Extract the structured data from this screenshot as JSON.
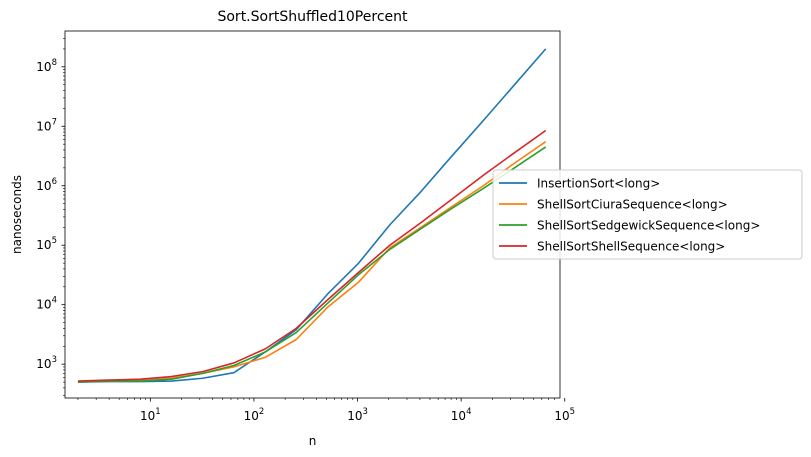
{
  "chart_data": {
    "type": "line",
    "title": "Sort.SortShuffled10Percent",
    "xlabel": "n",
    "ylabel": "nanoseconds",
    "xscale": "log",
    "yscale": "log",
    "xlim": [
      1.5,
      90000
    ],
    "ylim": [
      270,
      400000000
    ],
    "x_ticks": [
      {
        "value": 10,
        "base": "10",
        "exp": "1"
      },
      {
        "value": 100,
        "base": "10",
        "exp": "2"
      },
      {
        "value": 1000,
        "base": "10",
        "exp": "3"
      },
      {
        "value": 10000,
        "base": "10",
        "exp": "4"
      },
      {
        "value": 100000,
        "base": "10",
        "exp": "5"
      }
    ],
    "y_ticks": [
      {
        "value": 1000,
        "base": "10",
        "exp": "3"
      },
      {
        "value": 10000,
        "base": "10",
        "exp": "4"
      },
      {
        "value": 100000,
        "base": "10",
        "exp": "5"
      },
      {
        "value": 1000000,
        "base": "10",
        "exp": "6"
      },
      {
        "value": 10000000,
        "base": "10",
        "exp": "7"
      },
      {
        "value": 100000000,
        "base": "10",
        "exp": "8"
      }
    ],
    "x": [
      2,
      4,
      8,
      16,
      32,
      64,
      128,
      256,
      512,
      1024,
      2048,
      4096,
      8192,
      16384,
      32768,
      65536
    ],
    "series": [
      {
        "name": "InsertionSort<long>",
        "color": "#1f77b4",
        "values": [
          500,
          510,
          510,
          520,
          580,
          720,
          1600,
          3800,
          15000,
          50000,
          220000,
          800000,
          3200000,
          12500000,
          50000000,
          200000000
        ]
      },
      {
        "name": "ShellSortCiuraSequence<long>",
        "color": "#ff7f0e",
        "values": [
          510,
          520,
          530,
          580,
          700,
          900,
          1300,
          2600,
          9000,
          24000,
          90000,
          200000,
          450000,
          1000000,
          2400000,
          5500000
        ]
      },
      {
        "name": "ShellSortSedgewickSequence<long>",
        "color": "#2ca02c",
        "values": [
          500,
          520,
          520,
          560,
          700,
          950,
          1600,
          3400,
          10500,
          32000,
          85000,
          190000,
          420000,
          900000,
          2000000,
          4500000
        ]
      },
      {
        "name": "ShellSortShellSequence<long>",
        "color": "#d62728",
        "values": [
          520,
          540,
          560,
          620,
          750,
          1050,
          1800,
          4000,
          12000,
          35000,
          100000,
          240000,
          600000,
          1500000,
          3600000,
          8500000
        ]
      }
    ],
    "legend_position": "right, outside plot area",
    "grid": false
  }
}
